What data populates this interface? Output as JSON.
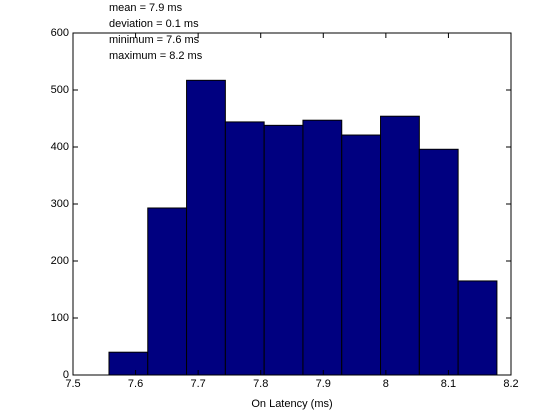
{
  "chart_data": {
    "type": "histogram",
    "bins": [
      7.5575,
      7.6195,
      7.6815,
      7.7435,
      7.8055,
      7.8675,
      7.9295,
      7.9915,
      8.0535,
      8.1155,
      8.1775
    ],
    "values": [
      40,
      293,
      517,
      444,
      438,
      447,
      421,
      454,
      396,
      165
    ],
    "color": "#000080",
    "edge_color": "#000000",
    "xlabel": "On Latency (ms)",
    "annotations": [
      "mean = 7.9 ms",
      "deviation = 0.1 ms",
      "minimum = 7.6 ms",
      "maximum = 8.2 ms"
    ],
    "xlim": [
      7.5,
      8.2
    ],
    "xticks": [
      7.5,
      7.6,
      7.7,
      7.8,
      7.9,
      8,
      8.1,
      8.2
    ],
    "ylim": [
      0,
      600
    ],
    "yticks": [
      0,
      100,
      200,
      300,
      400,
      500,
      600
    ],
    "grid": false
  }
}
